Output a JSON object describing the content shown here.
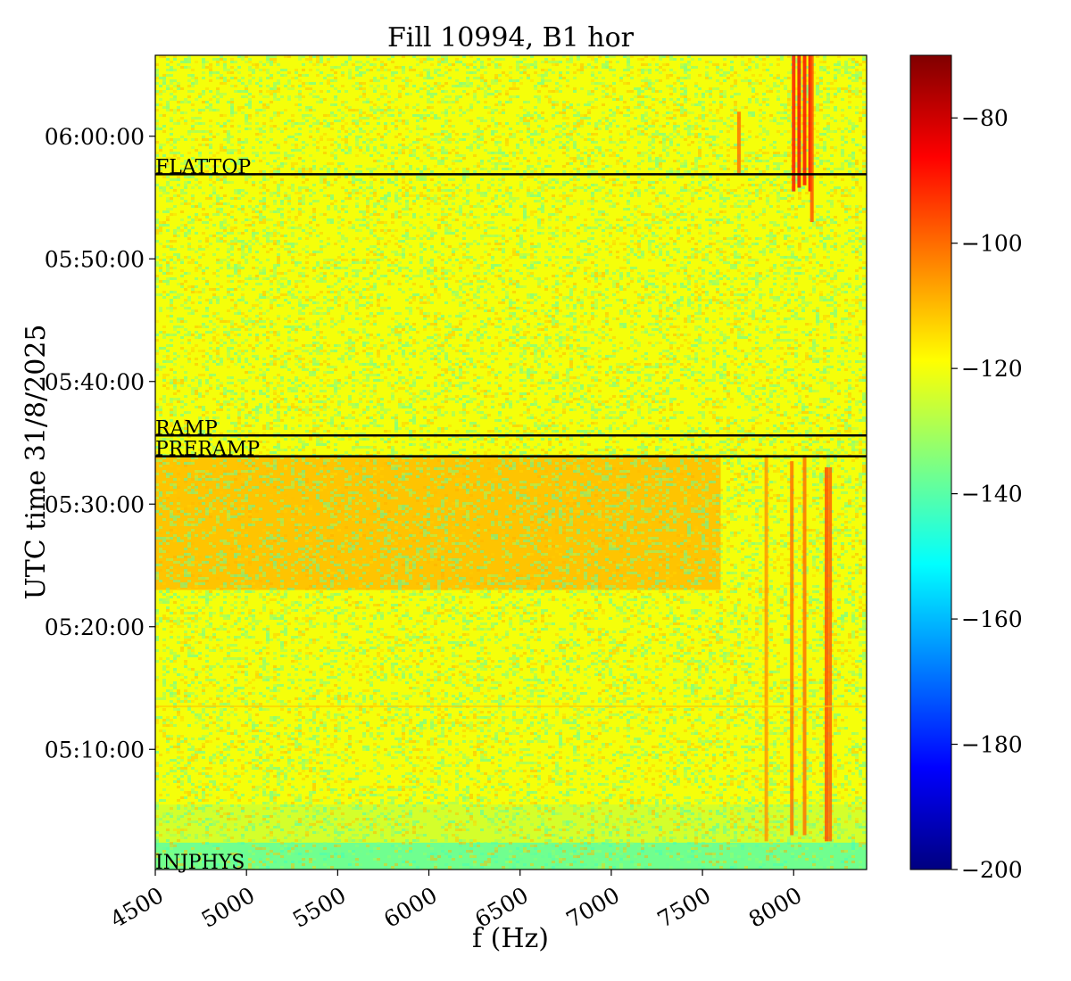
{
  "chart_data": {
    "type": "heatmap",
    "title": "Fill 10994, B1 hor",
    "xlabel": "f (Hz)",
    "ylabel": "UTC time 31/8/2025",
    "xlim": [
      4500,
      8400
    ],
    "xticks": [
      4500,
      5000,
      5500,
      6000,
      6500,
      7000,
      7500,
      8000
    ],
    "xtick_labels": [
      "4500",
      "5000",
      "5500",
      "6000",
      "6500",
      "7000",
      "7500",
      "8000"
    ],
    "ylim_minutes": [
      300.2,
      366.6
    ],
    "yticks_minutes": [
      310,
      320,
      330,
      340,
      350,
      360
    ],
    "ytick_labels": [
      "05:10:00",
      "05:20:00",
      "05:30:00",
      "05:40:00",
      "05:50:00",
      "06:00:00"
    ],
    "colormap": "jet",
    "colorbar": {
      "min": -200,
      "max": -70,
      "ticks": [
        -200,
        -180,
        -160,
        -140,
        -120,
        -100,
        -80
      ],
      "tick_labels": [
        "−200",
        "−180",
        "−160",
        "−140",
        "−120",
        "−100",
        "−80"
      ]
    },
    "background_level_db": -120,
    "phases": [
      {
        "name": "INJPHYS",
        "time_minutes": 300.2
      },
      {
        "name": "PRERAMP",
        "time_minutes": 333.9
      },
      {
        "name": "RAMP",
        "time_minutes": 335.6
      },
      {
        "name": "FLATTOP",
        "time_minutes": 356.9
      }
    ],
    "bands": [
      {
        "t_from": 300.2,
        "t_to": 302.4,
        "f_from": 4500,
        "f_to": 8400,
        "level_db": -140
      },
      {
        "t_from": 302.4,
        "t_to": 305.5,
        "f_from": 4500,
        "f_to": 8400,
        "level_db": -125
      },
      {
        "t_from": 323.0,
        "t_to": 333.9,
        "f_from": 4500,
        "f_to": 7600,
        "level_db": -110
      }
    ],
    "lines": [
      {
        "f": 7700,
        "t_from": 357.0,
        "t_to": 362.0,
        "level_db": -100
      },
      {
        "f": 7850,
        "t_from": 302.5,
        "t_to": 334.0,
        "level_db": -105
      },
      {
        "f": 7990,
        "t_from": 303.0,
        "t_to": 333.5,
        "level_db": -100
      },
      {
        "f": 8000,
        "t_from": 355.5,
        "t_to": 366.6,
        "level_db": -88
      },
      {
        "f": 8030,
        "t_from": 355.8,
        "t_to": 366.6,
        "level_db": -85
      },
      {
        "f": 8060,
        "t_from": 303.0,
        "t_to": 334.0,
        "level_db": -100
      },
      {
        "f": 8060,
        "t_from": 356.0,
        "t_to": 366.6,
        "level_db": -86
      },
      {
        "f": 8090,
        "t_from": 355.5,
        "t_to": 366.6,
        "level_db": -86
      },
      {
        "f": 8100,
        "t_from": 353.0,
        "t_to": 366.6,
        "level_db": -96
      },
      {
        "f": 8180,
        "t_from": 302.5,
        "t_to": 333.0,
        "level_db": -95
      },
      {
        "f": 8200,
        "t_from": 302.5,
        "t_to": 333.0,
        "level_db": -98
      }
    ],
    "hlines": [
      {
        "t": 313.5,
        "f_from": 4500,
        "f_to": 8400,
        "level_db": -112
      }
    ]
  }
}
